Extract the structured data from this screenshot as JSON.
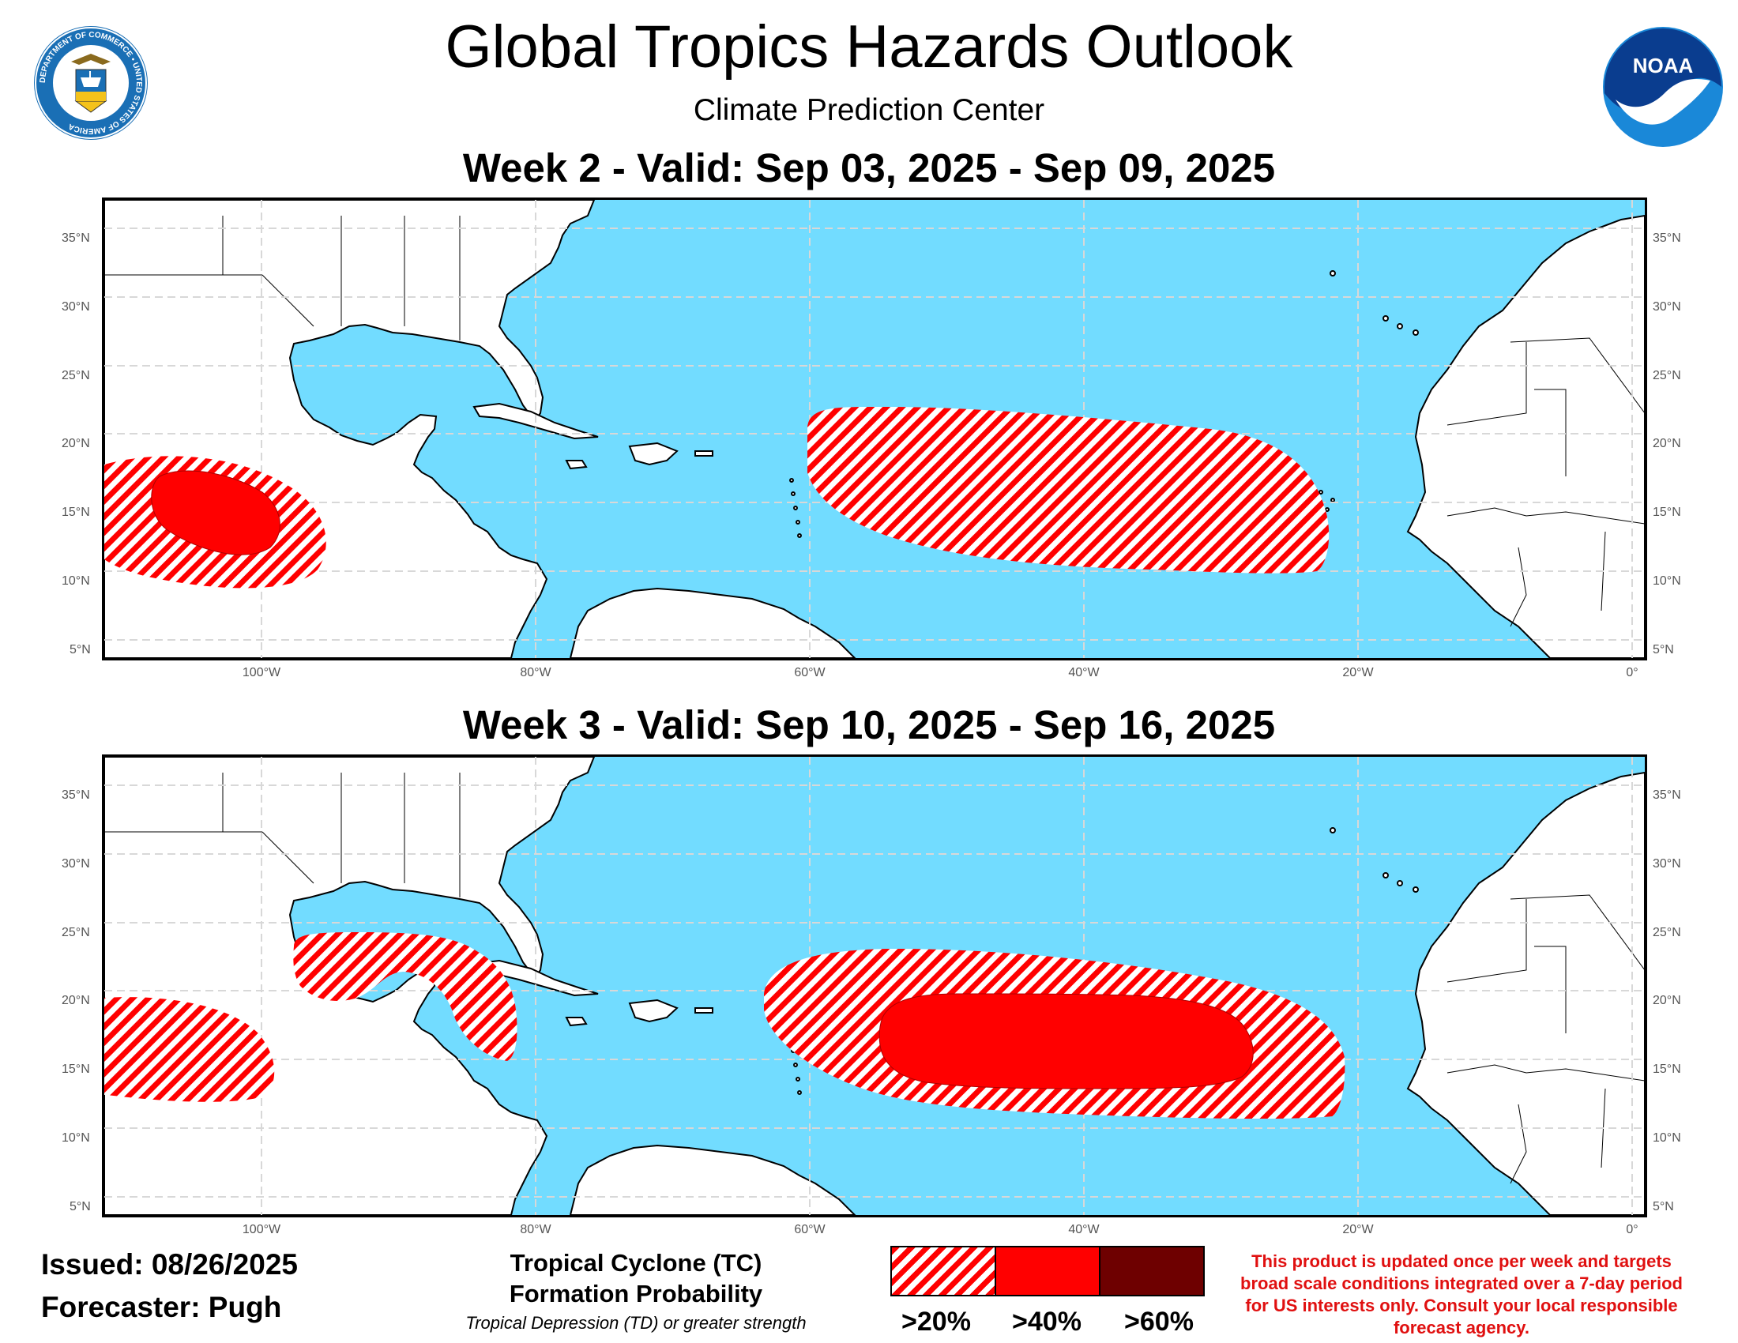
{
  "header": {
    "title": "Global Tropics Hazards Outlook",
    "subtitle": "Climate Prediction Center"
  },
  "weeks": [
    {
      "label": "Week 2 - Valid: Sep 03, 2025 - Sep 09, 2025"
    },
    {
      "label": "Week 3 - Valid: Sep 10, 2025 - Sep 16, 2025"
    }
  ],
  "axes": {
    "lat_labels": [
      "35°N",
      "30°N",
      "25°N",
      "20°N",
      "15°N",
      "10°N",
      "5°N"
    ],
    "lat_values": [
      35,
      30,
      25,
      20,
      15,
      10,
      5
    ],
    "lon_labels": [
      "100°W",
      "80°W",
      "60°W",
      "40°W",
      "20°W",
      "0°"
    ],
    "lon_values": [
      -100,
      -80,
      -60,
      -40,
      -20,
      0
    ],
    "extent": {
      "lon_min": -112,
      "lon_max": 0.5,
      "lat_min": 4,
      "lat_max": 37.5
    }
  },
  "footer": {
    "issued": "Issued: 08/26/2025",
    "forecaster": "Forecaster: Pugh"
  },
  "legend": {
    "heading_line1": "Tropical Cyclone (TC)",
    "heading_line2": "Formation Probability",
    "subheading": "Tropical Depression (TD) or greater strength",
    "items": [
      {
        "label": ">20%",
        "style": "hatched",
        "color": "#ff0000"
      },
      {
        "label": ">40%",
        "style": "solid",
        "color": "#ff0000"
      },
      {
        "label": ">60%",
        "style": "solid",
        "color": "#6e0000"
      }
    ]
  },
  "disclaimer": "This product is updated once per week and targets broad scale conditions integrated over a 7-day period for US interests only. Consult your local responsible forecast agency.",
  "logos": {
    "left": "Department of Commerce seal",
    "left_ring_text": "DEPARTMENT OF COMMERCE • UNITED STATES OF AMERICA",
    "right": "NOAA",
    "right_text": "NOAA"
  },
  "colors": {
    "ocean": "#72dcff",
    "land": "#ffffff",
    "hazard": "#ff0000",
    "hazard_high": "#6e0000",
    "disclaimer": "#e01010"
  }
}
